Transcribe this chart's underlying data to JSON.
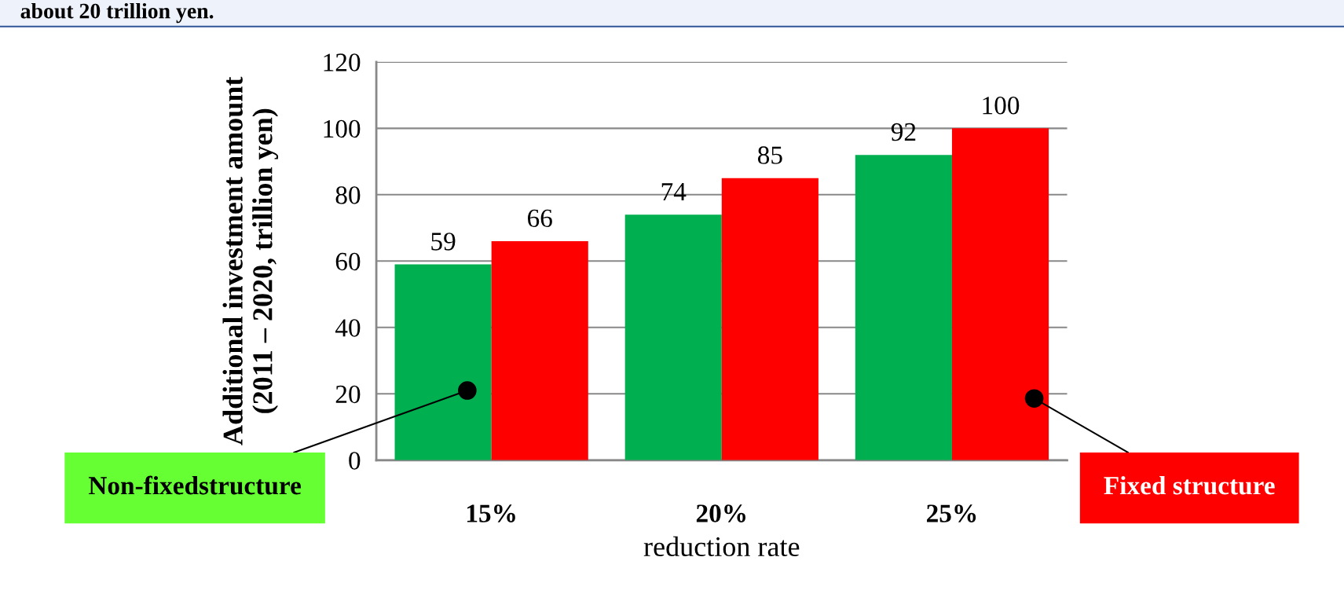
{
  "chart_data": {
    "type": "bar",
    "annotations": [
      "about 20 trillion yen."
    ],
    "xlabel": "reduction rate",
    "ylabel": "Additional investment amount\n(2011 – 2020, trillion yen)",
    "categories": [
      "15%",
      "20%",
      "25%"
    ],
    "series": [
      {
        "name": "Non-fixedstructure",
        "color": "#00b050",
        "values": [
          59,
          74,
          92
        ]
      },
      {
        "name": "Fixed structure",
        "color": "#ff0000",
        "values": [
          66,
          85,
          100
        ]
      }
    ],
    "ylim": [
      0,
      120
    ],
    "yticks": [
      0,
      20,
      40,
      60,
      80,
      100,
      120
    ],
    "grid": "y",
    "data_labels": true,
    "legend": "bottom"
  }
}
